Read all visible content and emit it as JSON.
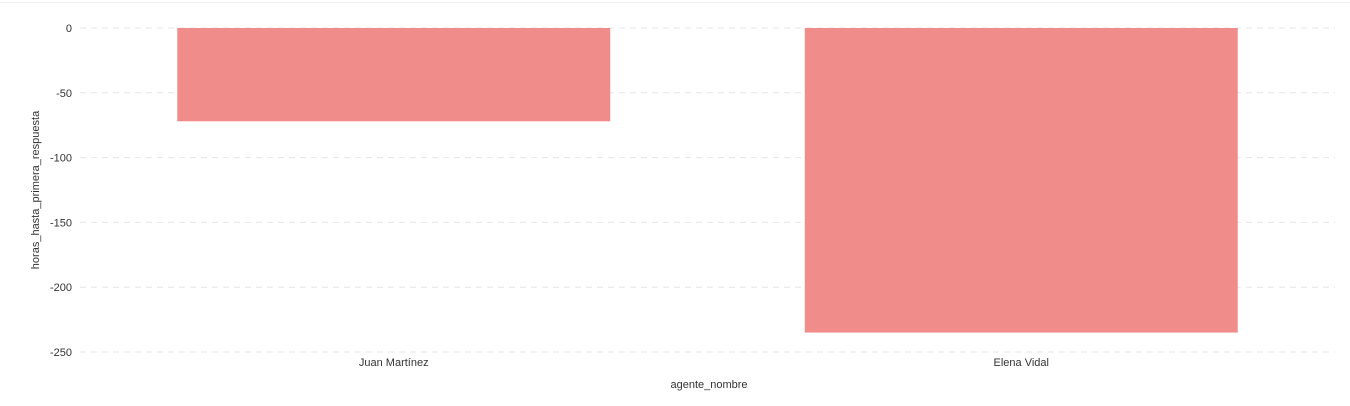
{
  "chart_data": {
    "type": "bar",
    "categories": [
      "Juan Martínez",
      "Elena Vidal"
    ],
    "series": [
      {
        "values": [
          -72,
          -235
        ]
      }
    ],
    "xlabel": "agente_nombre",
    "ylabel": "horas_hasta_primera_respuesta",
    "ylim": [
      -250,
      0
    ],
    "yticks": [
      0,
      -50,
      -100,
      -150,
      -200,
      -250
    ],
    "ytick_labels": [
      "0",
      "-50",
      "-100",
      "-150",
      "-200",
      "-250"
    ],
    "grid": true,
    "bar_color": "#f08c8a",
    "grid_color": "#e6e6e6"
  }
}
